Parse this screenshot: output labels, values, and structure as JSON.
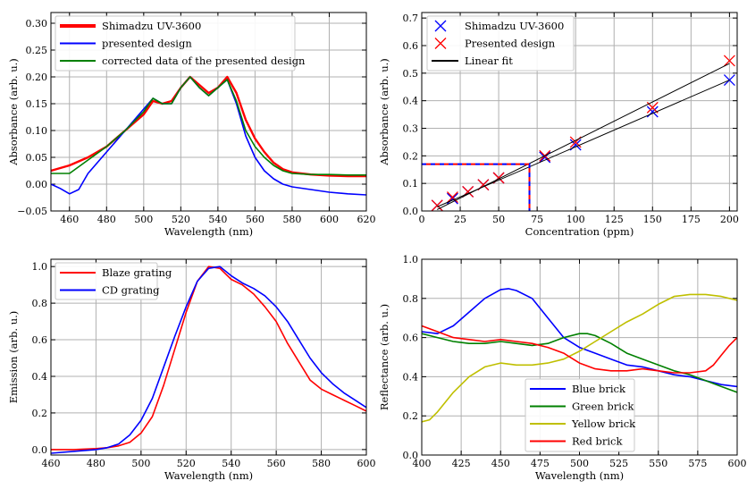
{
  "chart_data": [
    {
      "id": "a",
      "type": "line",
      "xlabel": "Wavelength (nm)",
      "ylabel": "Absorbance (arb. u.)",
      "xlim": [
        450,
        620
      ],
      "ylim": [
        -0.05,
        0.32
      ],
      "xticks": [
        460,
        480,
        500,
        520,
        540,
        560,
        580,
        600,
        620
      ],
      "yticks": [
        -0.05,
        0.0,
        0.05,
        0.1,
        0.15,
        0.2,
        0.25,
        0.3
      ],
      "yticklabels": [
        "−0.05",
        "0.00",
        "0.05",
        "0.10",
        "0.15",
        "0.20",
        "0.25",
        "0.30"
      ],
      "grid": true,
      "legend_position": "top-left",
      "series": [
        {
          "name": "Shimadzu UV-3600",
          "color": "#ff0000",
          "x": [
            450,
            460,
            470,
            480,
            490,
            500,
            505,
            510,
            515,
            520,
            525,
            530,
            535,
            540,
            545,
            550,
            555,
            560,
            565,
            570,
            575,
            580,
            590,
            600,
            610,
            620
          ],
          "y": [
            0.025,
            0.035,
            0.05,
            0.07,
            0.1,
            0.13,
            0.155,
            0.15,
            0.155,
            0.18,
            0.2,
            0.185,
            0.17,
            0.18,
            0.2,
            0.17,
            0.12,
            0.085,
            0.06,
            0.04,
            0.028,
            0.022,
            0.018,
            0.016,
            0.015,
            0.015
          ]
        },
        {
          "name": "presented design",
          "color": "#0000ff",
          "x": [
            450,
            455,
            460,
            465,
            470,
            480,
            490,
            500,
            505,
            510,
            515,
            520,
            525,
            530,
            535,
            540,
            545,
            550,
            555,
            560,
            565,
            570,
            575,
            580,
            590,
            600,
            610,
            620
          ],
          "y": [
            0.0,
            -0.008,
            -0.018,
            -0.01,
            0.02,
            0.06,
            0.1,
            0.14,
            0.16,
            0.15,
            0.15,
            0.18,
            0.2,
            0.18,
            0.165,
            0.18,
            0.195,
            0.15,
            0.09,
            0.05,
            0.025,
            0.01,
            0.0,
            -0.005,
            -0.01,
            -0.015,
            -0.018,
            -0.02
          ]
        },
        {
          "name": "corrected data of the presented design",
          "color": "#008000",
          "x": [
            450,
            460,
            470,
            480,
            490,
            500,
            505,
            510,
            515,
            520,
            525,
            530,
            535,
            540,
            545,
            550,
            555,
            560,
            565,
            570,
            575,
            580,
            590,
            600,
            610,
            620
          ],
          "y": [
            0.02,
            0.02,
            0.045,
            0.07,
            0.1,
            0.135,
            0.16,
            0.15,
            0.15,
            0.18,
            0.2,
            0.18,
            0.165,
            0.18,
            0.195,
            0.155,
            0.1,
            0.07,
            0.05,
            0.035,
            0.025,
            0.02,
            0.018,
            0.018,
            0.017,
            0.017
          ]
        }
      ]
    },
    {
      "id": "b",
      "type": "scatter",
      "xlabel": "Concentration (ppm)",
      "ylabel": "Absorbance (arb. u.)",
      "xlim": [
        0,
        205
      ],
      "ylim": [
        0,
        0.72
      ],
      "xticks": [
        0,
        25,
        50,
        75,
        100,
        125,
        150,
        175,
        200
      ],
      "yticks": [
        0.0,
        0.1,
        0.2,
        0.3,
        0.4,
        0.5,
        0.6,
        0.7
      ],
      "yticklabels": [
        "0.0",
        "0.1",
        "0.2",
        "0.3",
        "0.4",
        "0.5",
        "0.6",
        "0.7"
      ],
      "grid": true,
      "legend_position": "top-left",
      "series": [
        {
          "name": "Shimadzu UV-3600",
          "color": "#0000ff",
          "marker": "x",
          "x": [
            10,
            20,
            30,
            40,
            50,
            80,
            100,
            150,
            200
          ],
          "y": [
            0.02,
            0.045,
            0.07,
            0.095,
            0.12,
            0.195,
            0.24,
            0.36,
            0.475
          ]
        },
        {
          "name": "Presented design",
          "color": "#ff0000",
          "marker": "x",
          "x": [
            10,
            20,
            30,
            40,
            50,
            80,
            100,
            150,
            200
          ],
          "y": [
            0.02,
            0.05,
            0.07,
            0.095,
            0.12,
            0.2,
            0.25,
            0.375,
            0.545
          ]
        },
        {
          "name": "Linear fit",
          "color": "#000000",
          "marker": "line",
          "lines": [
            {
              "x": [
                10,
                200
              ],
              "y": [
                0.015,
                0.475
              ]
            },
            {
              "x": [
                10,
                200
              ],
              "y": [
                0.005,
                0.535
              ]
            }
          ]
        }
      ],
      "dashed_guides": {
        "x_value": 70,
        "y_value": 0.17,
        "colors": [
          "#0000ff",
          "#ff0000"
        ]
      }
    },
    {
      "id": "c",
      "type": "line",
      "xlabel": "Wavelength (nm)",
      "ylabel": "Emission (arb. u.)",
      "xlim": [
        460,
        600
      ],
      "ylim": [
        -0.03,
        1.04
      ],
      "xticks": [
        460,
        480,
        500,
        520,
        540,
        560,
        580,
        600
      ],
      "yticks": [
        0.0,
        0.2,
        0.4,
        0.6,
        0.8,
        1.0
      ],
      "yticklabels": [
        "0.0",
        "0.2",
        "0.4",
        "0.6",
        "0.8",
        "1.0"
      ],
      "grid": true,
      "legend_position": "top-left",
      "series": [
        {
          "name": "Blaze grating",
          "color": "#ff0000",
          "x": [
            460,
            470,
            480,
            485,
            490,
            495,
            500,
            505,
            510,
            515,
            520,
            525,
            530,
            535,
            540,
            545,
            550,
            555,
            560,
            565,
            570,
            575,
            580,
            585,
            590,
            595,
            600
          ],
          "y": [
            0.0,
            0.0,
            0.005,
            0.01,
            0.02,
            0.04,
            0.09,
            0.18,
            0.35,
            0.55,
            0.75,
            0.92,
            1.0,
            0.99,
            0.93,
            0.9,
            0.85,
            0.78,
            0.7,
            0.58,
            0.48,
            0.38,
            0.33,
            0.3,
            0.27,
            0.24,
            0.21
          ]
        },
        {
          "name": "CD grating",
          "color": "#0000ff",
          "x": [
            460,
            470,
            480,
            485,
            490,
            495,
            500,
            505,
            510,
            515,
            520,
            525,
            530,
            535,
            540,
            545,
            550,
            555,
            560,
            565,
            570,
            575,
            580,
            585,
            590,
            595,
            600
          ],
          "y": [
            -0.02,
            -0.01,
            0.0,
            0.01,
            0.03,
            0.08,
            0.16,
            0.28,
            0.45,
            0.62,
            0.78,
            0.92,
            0.99,
            1.0,
            0.95,
            0.91,
            0.88,
            0.84,
            0.78,
            0.7,
            0.6,
            0.5,
            0.42,
            0.36,
            0.31,
            0.27,
            0.23
          ]
        }
      ]
    },
    {
      "id": "d",
      "type": "line",
      "xlabel": "Wavelength (nm)",
      "ylabel": "Reflectance (arb. u.)",
      "xlim": [
        400,
        600
      ],
      "ylim": [
        0.0,
        1.0
      ],
      "xticks": [
        400,
        425,
        450,
        475,
        500,
        525,
        550,
        575,
        600
      ],
      "yticks": [
        0.0,
        0.2,
        0.4,
        0.6,
        0.8,
        1.0
      ],
      "yticklabels": [
        "0.0",
        "0.2",
        "0.4",
        "0.6",
        "0.8",
        "1.0"
      ],
      "grid": true,
      "legend_position": "bottom-center",
      "series": [
        {
          "name": "Blue brick",
          "color": "#0000ff",
          "x": [
            400,
            410,
            420,
            430,
            440,
            450,
            455,
            460,
            470,
            480,
            490,
            500,
            510,
            520,
            530,
            540,
            550,
            560,
            570,
            580,
            590,
            600
          ],
          "y": [
            0.63,
            0.62,
            0.66,
            0.73,
            0.8,
            0.845,
            0.85,
            0.84,
            0.8,
            0.7,
            0.6,
            0.55,
            0.52,
            0.49,
            0.46,
            0.45,
            0.43,
            0.41,
            0.4,
            0.38,
            0.36,
            0.35
          ]
        },
        {
          "name": "Green brick",
          "color": "#008000",
          "x": [
            400,
            410,
            420,
            430,
            440,
            450,
            460,
            470,
            480,
            490,
            500,
            505,
            510,
            520,
            530,
            540,
            550,
            560,
            570,
            580,
            590,
            600
          ],
          "y": [
            0.62,
            0.6,
            0.58,
            0.57,
            0.57,
            0.58,
            0.57,
            0.56,
            0.57,
            0.6,
            0.62,
            0.62,
            0.61,
            0.57,
            0.52,
            0.49,
            0.46,
            0.43,
            0.41,
            0.38,
            0.35,
            0.32
          ]
        },
        {
          "name": "Yellow brick",
          "color": "#bfbf00",
          "x": [
            400,
            405,
            410,
            420,
            430,
            440,
            450,
            460,
            470,
            480,
            490,
            500,
            510,
            520,
            530,
            540,
            550,
            560,
            570,
            580,
            590,
            600
          ],
          "y": [
            0.17,
            0.18,
            0.22,
            0.32,
            0.4,
            0.45,
            0.47,
            0.46,
            0.46,
            0.47,
            0.49,
            0.53,
            0.58,
            0.63,
            0.68,
            0.72,
            0.77,
            0.81,
            0.82,
            0.82,
            0.81,
            0.79
          ]
        },
        {
          "name": "Red brick",
          "color": "#ff0000",
          "x": [
            400,
            410,
            420,
            430,
            440,
            450,
            460,
            470,
            480,
            490,
            500,
            510,
            520,
            530,
            540,
            550,
            560,
            570,
            580,
            585,
            590,
            595,
            600
          ],
          "y": [
            0.66,
            0.63,
            0.6,
            0.59,
            0.58,
            0.59,
            0.58,
            0.57,
            0.55,
            0.52,
            0.47,
            0.44,
            0.43,
            0.43,
            0.44,
            0.43,
            0.42,
            0.42,
            0.43,
            0.46,
            0.51,
            0.56,
            0.6
          ]
        }
      ]
    }
  ]
}
